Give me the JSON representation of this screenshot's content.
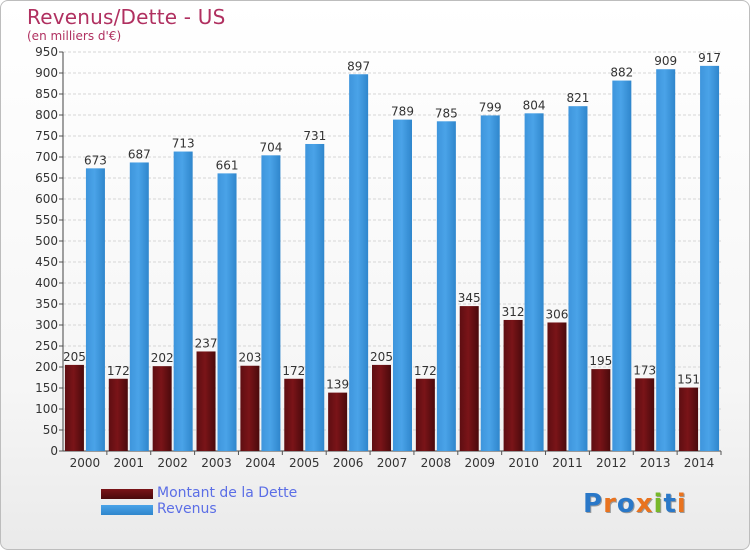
{
  "title": "Revenus/Dette - US",
  "subtitle": "(en milliers d'€)",
  "colors": {
    "dette": "#7a1418",
    "revenus": "#4aa3e8",
    "title": "#b03060",
    "legend_text": "#5b6ee6"
  },
  "legend": [
    {
      "label": "Montant de la Dette",
      "color_key": "dette"
    },
    {
      "label": "Revenus",
      "color_key": "revenus"
    }
  ],
  "logo": {
    "text": "Proxiti"
  },
  "chart_data": {
    "type": "bar",
    "title": "Revenus/Dette - US",
    "subtitle": "(en milliers d'€)",
    "categories": [
      "2000",
      "2001",
      "2002",
      "2003",
      "2004",
      "2005",
      "2006",
      "2007",
      "2008",
      "2009",
      "2010",
      "2011",
      "2012",
      "2013",
      "2014"
    ],
    "series": [
      {
        "name": "Montant de la Dette",
        "values": [
          205,
          172,
          202,
          237,
          203,
          172,
          139,
          205,
          172,
          345,
          312,
          306,
          195,
          173,
          151
        ]
      },
      {
        "name": "Revenus",
        "values": [
          673,
          687,
          713,
          661,
          704,
          731,
          897,
          789,
          785,
          799,
          804,
          821,
          882,
          909,
          917
        ]
      }
    ],
    "ylim": [
      0,
      950
    ],
    "ytick_step": 50,
    "grid": true,
    "legend_position": "bottom-left"
  }
}
